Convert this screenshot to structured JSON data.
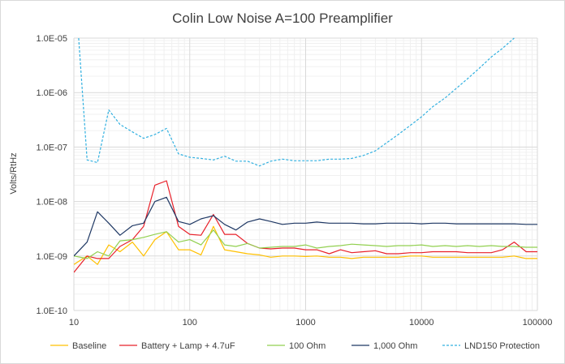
{
  "chart_data": {
    "type": "line",
    "title": "Colin Low Noise A=100 Preamplifier",
    "xlabel": "",
    "ylabel": "Volts/RtHz",
    "xscale": "log",
    "yscale": "log",
    "xlim": [
      10,
      100000
    ],
    "ylim": [
      1e-10,
      1e-05
    ],
    "x_tick_labels": [
      "10",
      "100",
      "1000",
      "10000",
      "100000"
    ],
    "y_tick_labels": [
      "1.0E-10",
      "1.0E-09",
      "1.0E-08",
      "1.0E-07",
      "1.0E-06",
      "1.0E-05"
    ],
    "grid": true,
    "legend_position": "bottom",
    "series": [
      {
        "name": "Baseline",
        "color": "#FFC000",
        "dash": false,
        "x": [
          10,
          13,
          16,
          20,
          25,
          32,
          40,
          50,
          63,
          80,
          100,
          125,
          160,
          200,
          250,
          315,
          400,
          500,
          630,
          800,
          1000,
          1250,
          1600,
          2000,
          2500,
          3150,
          4000,
          5000,
          6300,
          8000,
          10000,
          12500,
          16000,
          20000,
          25000,
          31500,
          40000,
          50000,
          63000,
          80000,
          100000
        ],
        "y": [
          7e-10,
          1e-09,
          7e-10,
          1.6e-09,
          1.2e-09,
          1.8e-09,
          1e-09,
          2e-09,
          2.8e-09,
          1.3e-09,
          1.3e-09,
          1.05e-09,
          3.5e-09,
          1.3e-09,
          1.2e-09,
          1.1e-09,
          1.05e-09,
          9.5e-10,
          1e-09,
          1e-09,
          9.8e-10,
          1e-09,
          9.5e-10,
          9.5e-10,
          9e-10,
          9.5e-10,
          9.5e-10,
          9.5e-10,
          9.5e-10,
          1e-09,
          1e-09,
          9.5e-10,
          9.5e-10,
          9.5e-10,
          9.5e-10,
          9.5e-10,
          9.5e-10,
          9.5e-10,
          1e-09,
          9e-10,
          9e-10
        ]
      },
      {
        "name": "Battery + Lamp + 4.7uF",
        "color": "#E8202A",
        "dash": false,
        "x": [
          10,
          13,
          16,
          20,
          25,
          32,
          40,
          50,
          63,
          80,
          100,
          125,
          160,
          200,
          250,
          315,
          400,
          500,
          630,
          800,
          1000,
          1250,
          1600,
          2000,
          2500,
          3150,
          4000,
          5000,
          6300,
          8000,
          10000,
          12500,
          16000,
          20000,
          25000,
          31500,
          40000,
          50000,
          63000,
          80000,
          100000
        ],
        "y": [
          5e-10,
          1e-09,
          9e-10,
          9e-10,
          1.5e-09,
          2e-09,
          3.5e-09,
          2e-08,
          2.4e-08,
          3.5e-09,
          2.5e-09,
          2.4e-09,
          5.8e-09,
          2.5e-09,
          2.5e-09,
          1.7e-09,
          1.4e-09,
          1.35e-09,
          1.4e-09,
          1.4e-09,
          1.3e-09,
          1.3e-09,
          1.1e-09,
          1.3e-09,
          1.15e-09,
          1.2e-09,
          1.25e-09,
          1.1e-09,
          1.1e-09,
          1.15e-09,
          1.15e-09,
          1.2e-09,
          1.2e-09,
          1.2e-09,
          1.15e-09,
          1.15e-09,
          1.15e-09,
          1.3e-09,
          1.8e-09,
          1.2e-09,
          1.2e-09
        ]
      },
      {
        "name": "100 Ohm",
        "color": "#92D050",
        "dash": false,
        "x": [
          10,
          13,
          16,
          20,
          25,
          32,
          40,
          50,
          63,
          80,
          100,
          125,
          160,
          200,
          250,
          315,
          400,
          500,
          630,
          800,
          1000,
          1250,
          1600,
          2000,
          2500,
          3150,
          4000,
          5000,
          6300,
          8000,
          10000,
          12500,
          16000,
          20000,
          25000,
          31500,
          40000,
          50000,
          63000,
          80000,
          100000
        ],
        "y": [
          1e-09,
          9e-10,
          1.2e-09,
          1e-09,
          1.9e-09,
          2e-09,
          2.2e-09,
          2.5e-09,
          2.8e-09,
          1.8e-09,
          2e-09,
          1.6e-09,
          3e-09,
          1.6e-09,
          1.5e-09,
          1.7e-09,
          1.4e-09,
          1.45e-09,
          1.5e-09,
          1.5e-09,
          1.6e-09,
          1.4e-09,
          1.5e-09,
          1.55e-09,
          1.65e-09,
          1.6e-09,
          1.55e-09,
          1.5e-09,
          1.55e-09,
          1.55e-09,
          1.6e-09,
          1.5e-09,
          1.55e-09,
          1.5e-09,
          1.55e-09,
          1.5e-09,
          1.55e-09,
          1.5e-09,
          1.5e-09,
          1.45e-09,
          1.45e-09
        ]
      },
      {
        "name": "1,000 Ohm",
        "color": "#1F3864",
        "dash": false,
        "x": [
          10,
          13,
          16,
          20,
          25,
          32,
          40,
          50,
          63,
          80,
          100,
          125,
          160,
          200,
          250,
          315,
          400,
          500,
          630,
          800,
          1000,
          1250,
          1600,
          2000,
          2500,
          3150,
          4000,
          5000,
          6300,
          8000,
          10000,
          12500,
          16000,
          20000,
          25000,
          31500,
          40000,
          50000,
          63000,
          80000,
          100000
        ],
        "y": [
          1e-09,
          1.8e-09,
          6.5e-09,
          4e-09,
          2.4e-09,
          3.6e-09,
          4e-09,
          1e-08,
          1.2e-08,
          4.3e-09,
          3.8e-09,
          4.8e-09,
          5.5e-09,
          3.8e-09,
          3e-09,
          4.2e-09,
          4.8e-09,
          4.3e-09,
          3.8e-09,
          4e-09,
          4e-09,
          4.2e-09,
          4e-09,
          4e-09,
          4e-09,
          3.9e-09,
          3.9e-09,
          4e-09,
          4e-09,
          4e-09,
          3.9e-09,
          4e-09,
          4e-09,
          3.9e-09,
          3.9e-09,
          3.9e-09,
          3.9e-09,
          3.9e-09,
          3.9e-09,
          3.8e-09,
          3.8e-09
        ]
      },
      {
        "name": "LND150 Protection",
        "color": "#31B0E0",
        "dash": true,
        "x": [
          11,
          13,
          16,
          20,
          25,
          32,
          40,
          50,
          63,
          80,
          100,
          125,
          160,
          200,
          250,
          315,
          400,
          500,
          630,
          800,
          1000,
          1250,
          1600,
          2000,
          2500,
          3150,
          4000,
          5000,
          6300,
          8000,
          10000,
          12500,
          16000,
          20000,
          25000,
          31500,
          40000,
          50000,
          63000
        ],
        "y": [
          1e-05,
          5.8e-08,
          5.2e-08,
          4.8e-07,
          2.6e-07,
          1.9e-07,
          1.45e-07,
          1.7e-07,
          2.2e-07,
          7.5e-08,
          6.5e-08,
          6.2e-08,
          5.8e-08,
          6.8e-08,
          5.5e-08,
          5.5e-08,
          4.5e-08,
          5.5e-08,
          6e-08,
          5.6e-08,
          5.6e-08,
          5.6e-08,
          6e-08,
          6e-08,
          6.2e-08,
          7e-08,
          8.5e-08,
          1.2e-07,
          1.7e-07,
          2.5e-07,
          3.6e-07,
          5.5e-07,
          8e-07,
          1.2e-06,
          1.8e-06,
          2.8e-06,
          4.5e-06,
          6.5e-06,
          1e-05
        ]
      }
    ]
  }
}
